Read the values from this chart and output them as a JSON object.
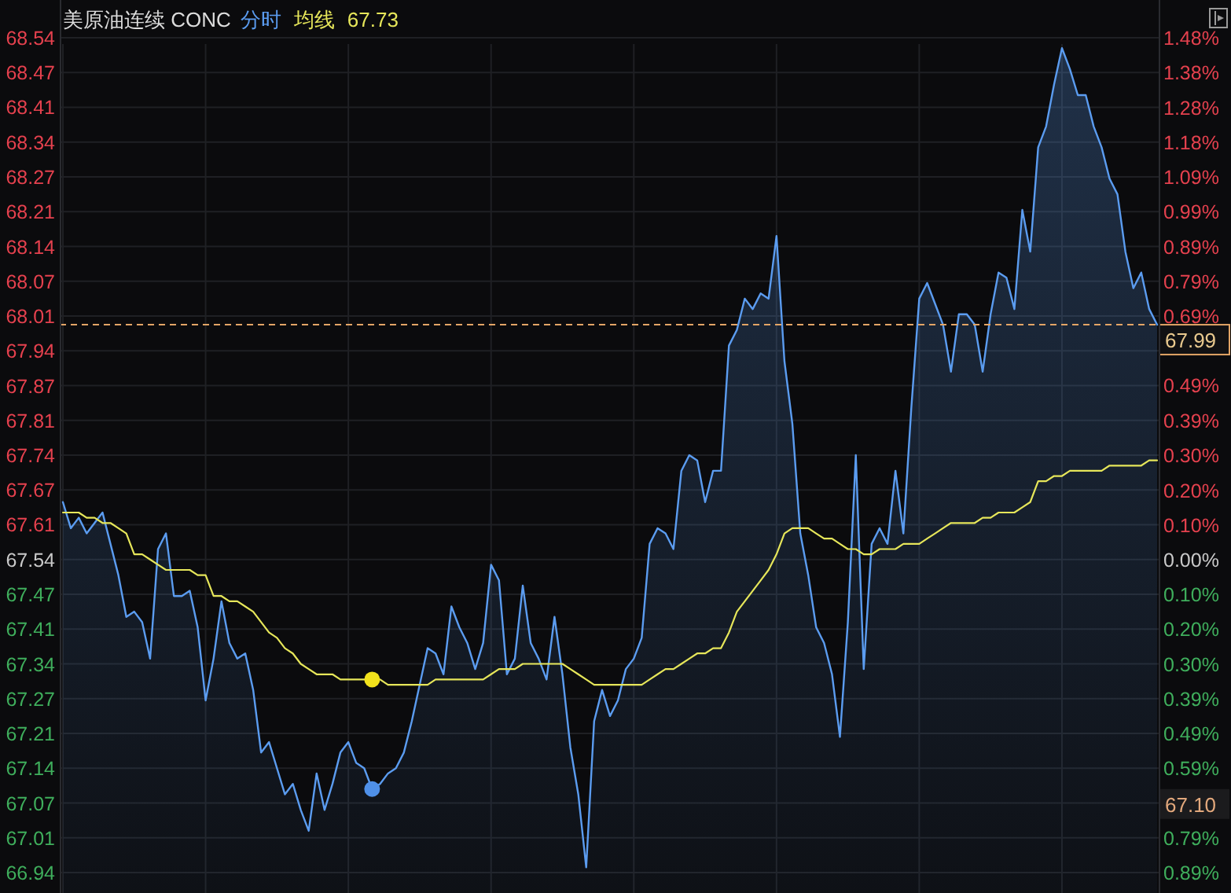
{
  "chart_data": {
    "type": "line",
    "title": "美原油连续 CONC",
    "legend": "top",
    "grid": true,
    "categories": [
      null,
      null,
      null,
      null,
      null,
      null,
      null,
      null,
      null,
      null,
      null,
      null,
      null,
      null,
      null,
      null,
      null,
      null,
      null,
      null,
      null,
      null,
      null,
      null,
      null,
      null,
      null,
      null,
      null,
      null,
      null,
      null,
      null,
      null,
      null,
      null,
      null,
      null,
      null,
      null,
      null,
      null,
      null,
      null,
      null,
      null,
      null,
      null,
      null,
      null,
      null,
      null,
      null,
      null,
      null,
      null,
      null,
      null,
      null,
      null,
      null,
      null,
      null,
      null,
      null,
      null,
      null,
      null,
      null,
      null,
      null,
      null,
      null,
      null,
      null,
      null,
      null,
      null,
      null,
      null,
      null,
      null,
      null,
      null,
      null,
      null,
      null,
      null,
      null,
      null,
      null,
      null,
      null,
      null,
      null,
      null,
      null,
      null,
      null,
      null,
      null,
      null,
      null,
      null,
      null,
      null,
      null,
      null,
      null,
      null,
      null,
      null,
      null,
      null,
      null,
      null,
      null,
      null,
      null,
      null,
      null,
      null,
      null,
      null,
      null,
      null,
      null,
      null,
      null,
      null,
      null,
      null,
      null,
      null,
      null,
      null,
      null,
      null,
      null
    ],
    "ylim": [
      66.94,
      68.54
    ],
    "yticks": [
      66.94,
      {
        "value": 67.0067,
        "label": "67.01"
      },
      {
        "value": 67.0733,
        "label": "67.07"
      },
      67.14,
      {
        "value": 67.2067,
        "label": "67.21"
      },
      {
        "value": 67.2733,
        "label": "67.27"
      },
      67.34,
      {
        "value": 67.4067,
        "label": "67.41"
      },
      {
        "value": 67.4733,
        "label": "67.47"
      },
      67.54,
      {
        "value": 67.6067,
        "label": "67.61"
      },
      {
        "value": 67.6733,
        "label": "67.67"
      },
      67.74,
      {
        "value": 67.8067,
        "label": "67.81"
      },
      {
        "value": 67.8733,
        "label": "67.87"
      },
      67.94,
      {
        "value": 68.0067,
        "label": "68.01"
      },
      {
        "value": 68.0733,
        "label": "68.07"
      },
      68.14,
      {
        "value": 68.2067,
        "label": "68.21"
      },
      {
        "value": 68.2733,
        "label": "68.27"
      },
      68.34,
      {
        "value": 68.4067,
        "label": "68.41"
      },
      {
        "value": 68.4733,
        "label": "68.47"
      },
      68.54
    ],
    "y2lim": [
      -0.888,
      1.481
    ],
    "y2ticks": [
      {
        "value": -0.888,
        "label": "0.89%"
      },
      {
        "value": -0.79,
        "label": "0.79%"
      },
      {
        "value": -0.592,
        "label": "0.59%"
      },
      {
        "value": -0.494,
        "label": "0.49%"
      },
      {
        "value": -0.395,
        "label": "0.39%"
      },
      {
        "value": -0.296,
        "label": "0.30%"
      },
      {
        "value": -0.197,
        "label": "0.20%"
      },
      {
        "value": -0.099,
        "label": "0.10%"
      },
      {
        "value": 0,
        "label": "0.00%"
      },
      {
        "value": 0.099,
        "label": "0.10%"
      },
      {
        "value": 0.197,
        "label": "0.20%"
      },
      {
        "value": 0.296,
        "label": "0.30%"
      },
      {
        "value": 0.395,
        "label": "0.39%"
      },
      {
        "value": 0.494,
        "label": "0.49%"
      },
      {
        "value": 0.691,
        "label": "0.69%"
      },
      {
        "value": 0.79,
        "label": "0.79%"
      },
      {
        "value": 0.888,
        "label": "0.89%"
      },
      {
        "value": 0.987,
        "label": "0.99%"
      },
      {
        "value": 1.086,
        "label": "1.09%"
      },
      {
        "value": 1.184,
        "label": "1.18%"
      },
      {
        "value": 1.283,
        "label": "1.28%"
      },
      {
        "value": 1.382,
        "label": "1.38%"
      },
      {
        "value": 1.481,
        "label": "1.48%"
      }
    ],
    "series": [
      {
        "name": "分时",
        "type": "area",
        "color": "#5b9cf0",
        "values": [
          67.65,
          67.6,
          67.62,
          67.59,
          67.61,
          67.63,
          67.57,
          67.51,
          67.43,
          67.44,
          67.42,
          67.35,
          67.56,
          67.59,
          67.47,
          67.47,
          67.48,
          67.41,
          67.27,
          67.35,
          67.46,
          67.38,
          67.35,
          67.36,
          67.29,
          67.17,
          67.19,
          67.14,
          67.09,
          67.11,
          67.06,
          67.02,
          67.13,
          67.06,
          67.11,
          67.17,
          67.19,
          67.15,
          67.14,
          67.1,
          67.11,
          67.13,
          67.14,
          67.17,
          67.23,
          67.3,
          67.37,
          67.36,
          67.32,
          67.45,
          67.41,
          67.38,
          67.33,
          67.38,
          67.53,
          67.5,
          67.32,
          67.35,
          67.49,
          67.38,
          67.35,
          67.31,
          67.43,
          67.32,
          67.18,
          67.09,
          66.95,
          67.23,
          67.29,
          67.24,
          67.27,
          67.33,
          67.35,
          67.39,
          67.57,
          67.6,
          67.59,
          67.56,
          67.71,
          67.74,
          67.73,
          67.65,
          67.71,
          67.71,
          67.95,
          67.98,
          68.04,
          68.02,
          68.05,
          68.04,
          68.16,
          67.92,
          67.8,
          67.59,
          67.51,
          67.41,
          67.38,
          67.32,
          67.2,
          67.42,
          67.74,
          67.33,
          67.57,
          67.6,
          67.57,
          67.71,
          67.59,
          67.83,
          68.04,
          68.07,
          68.03,
          67.99,
          67.9,
          68.01,
          68.01,
          67.99,
          67.9,
          68.01,
          68.09,
          68.08,
          68.02,
          68.21,
          68.13,
          68.33,
          68.37,
          68.45,
          68.52,
          68.48,
          68.43,
          68.43,
          68.37,
          68.33,
          68.27,
          68.24,
          68.13,
          68.06,
          68.09,
          68.02,
          67.99
        ]
      },
      {
        "name": "均线",
        "color": "#e6e65a",
        "values": [
          67.63,
          67.63,
          67.63,
          67.62,
          67.62,
          67.61,
          67.61,
          67.6,
          67.59,
          67.55,
          67.55,
          67.54,
          67.53,
          67.52,
          67.52,
          67.52,
          67.52,
          67.51,
          67.51,
          67.47,
          67.47,
          67.46,
          67.46,
          67.45,
          67.44,
          67.42,
          67.4,
          67.39,
          67.37,
          67.36,
          67.34,
          67.33,
          67.32,
          67.32,
          67.32,
          67.31,
          67.31,
          67.31,
          67.31,
          67.31,
          67.31,
          67.3,
          67.3,
          67.3,
          67.3,
          67.3,
          67.3,
          67.31,
          67.31,
          67.31,
          67.31,
          67.31,
          67.31,
          67.31,
          67.32,
          67.33,
          67.33,
          67.33,
          67.34,
          67.34,
          67.34,
          67.34,
          67.34,
          67.34,
          67.33,
          67.32,
          67.31,
          67.3,
          67.3,
          67.3,
          67.3,
          67.3,
          67.3,
          67.3,
          67.31,
          67.32,
          67.33,
          67.33,
          67.34,
          67.35,
          67.36,
          67.36,
          67.37,
          67.37,
          67.4,
          67.44,
          67.46,
          67.48,
          67.5,
          67.52,
          67.55,
          67.59,
          67.6,
          67.6,
          67.6,
          67.59,
          67.58,
          67.58,
          67.57,
          67.56,
          67.56,
          67.55,
          67.55,
          67.56,
          67.56,
          67.56,
          67.57,
          67.57,
          67.57,
          67.58,
          67.59,
          67.6,
          67.61,
          67.61,
          67.61,
          67.61,
          67.62,
          67.62,
          67.63,
          67.63,
          67.63,
          67.64,
          67.65,
          67.69,
          67.69,
          67.7,
          67.7,
          67.71,
          67.71,
          67.71,
          67.71,
          67.71,
          67.72,
          67.72,
          67.72,
          67.72,
          67.72,
          67.73,
          67.73
        ]
      },
      {
        "type": "scatter",
        "color": "#4f90e8",
        "values": [
          null,
          null,
          null,
          null,
          null,
          null,
          null,
          null,
          null,
          null,
          null,
          null,
          null,
          null,
          null,
          null,
          null,
          null,
          null,
          null,
          null,
          null,
          null,
          null,
          null,
          null,
          null,
          null,
          null,
          null,
          null,
          null,
          null,
          null,
          null,
          null,
          null,
          null,
          null,
          67.1,
          null,
          null,
          null,
          null,
          null,
          null,
          null,
          null,
          null,
          null,
          null,
          null,
          null,
          null,
          null,
          null,
          null,
          null,
          null,
          null,
          null,
          null,
          null,
          null,
          null,
          null,
          null,
          null,
          null,
          null,
          null,
          null,
          null,
          null,
          null,
          null,
          null,
          null,
          null,
          null,
          null,
          null,
          null,
          null,
          null,
          null,
          null,
          null,
          null,
          null,
          null,
          null,
          null,
          null,
          null,
          null,
          null,
          null,
          null,
          null,
          null,
          null,
          null,
          null,
          null,
          null,
          null,
          null,
          null,
          null,
          null,
          null,
          null,
          null,
          null,
          null,
          null,
          null,
          null,
          null,
          null,
          null,
          null,
          null,
          null,
          null,
          null,
          null,
          null,
          null,
          null,
          null,
          null,
          null,
          null,
          null,
          null,
          null,
          null
        ]
      },
      {
        "type": "scatter",
        "color": "#f2e21c",
        "values": [
          null,
          null,
          null,
          null,
          null,
          null,
          null,
          null,
          null,
          null,
          null,
          null,
          null,
          null,
          null,
          null,
          null,
          null,
          null,
          null,
          null,
          null,
          null,
          null,
          null,
          null,
          null,
          null,
          null,
          null,
          null,
          null,
          null,
          null,
          null,
          null,
          null,
          null,
          null,
          67.31,
          null,
          null,
          null,
          null,
          null,
          null,
          null,
          null,
          null,
          null,
          null,
          null,
          null,
          null,
          null,
          null,
          null,
          null,
          null,
          null,
          null,
          null,
          null,
          null,
          null,
          null,
          null,
          null,
          null,
          null,
          null,
          null,
          null,
          null,
          null,
          null,
          null,
          null,
          null,
          null,
          null,
          null,
          null,
          null,
          null,
          null,
          null,
          null,
          null,
          null,
          null,
          null,
          null,
          null,
          null,
          null,
          null,
          null,
          null,
          null,
          null,
          null,
          null,
          null,
          null,
          null,
          null,
          null,
          null,
          null,
          null,
          null,
          null,
          null,
          null,
          null,
          null,
          null,
          null,
          null,
          null,
          null,
          null,
          null,
          null,
          null,
          null,
          null,
          null,
          null,
          null,
          null,
          null,
          null,
          null,
          null,
          null,
          null,
          null
        ]
      }
    ],
    "ref_lines": [
      {
        "axis": "y",
        "value": 67.99,
        "label": "67.99",
        "color": "#e3a566",
        "line_style": "dashed"
      }
    ],
    "annotations": [
      "67.73",
      "67.10"
    ]
  }
}
